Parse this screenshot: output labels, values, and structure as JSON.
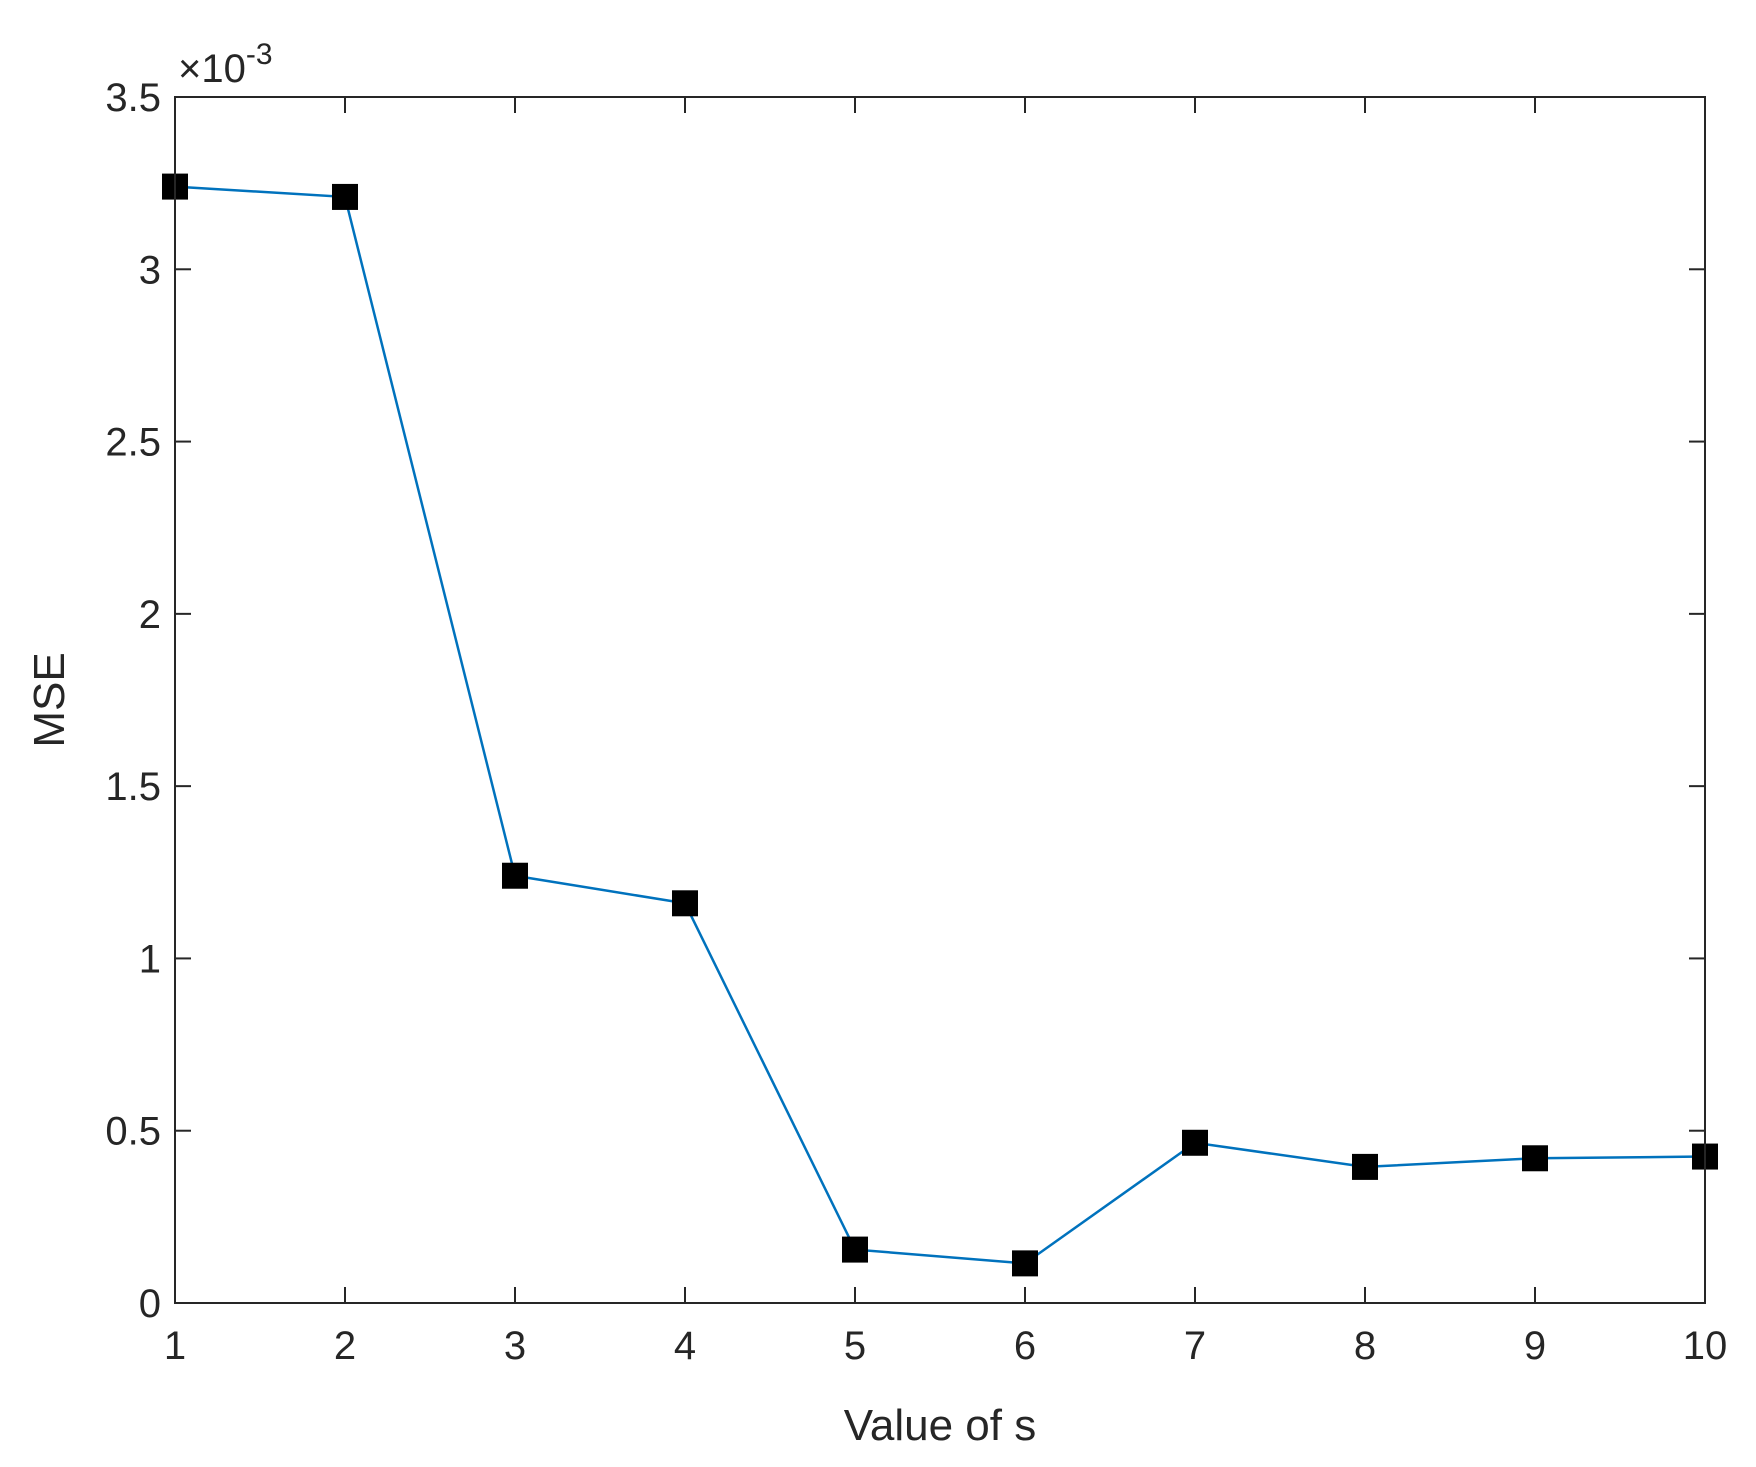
{
  "chart_data": {
    "type": "line",
    "title": "",
    "xlabel": "Value of s",
    "ylabel": "MSE",
    "scale_note": {
      "prefix": "×10",
      "exponent": "-3"
    },
    "x": [
      1,
      2,
      3,
      4,
      5,
      6,
      7,
      8,
      9,
      10
    ],
    "series": [
      {
        "values": [
          3.24,
          3.21,
          1.24,
          1.16,
          0.155,
          0.115,
          0.465,
          0.395,
          0.42,
          0.425
        ],
        "line_color": "#0072BD",
        "marker": "square",
        "marker_color": "#000000"
      }
    ],
    "xlim": [
      1,
      10
    ],
    "ylim": [
      0,
      3.5
    ],
    "xticks": [
      "1",
      "2",
      "3",
      "4",
      "5",
      "6",
      "7",
      "8",
      "9",
      "10"
    ],
    "yticks": [
      "0",
      "0.5",
      "1",
      "1.5",
      "2",
      "2.5",
      "3",
      "3.5"
    ],
    "grid": false,
    "legend": "none"
  }
}
